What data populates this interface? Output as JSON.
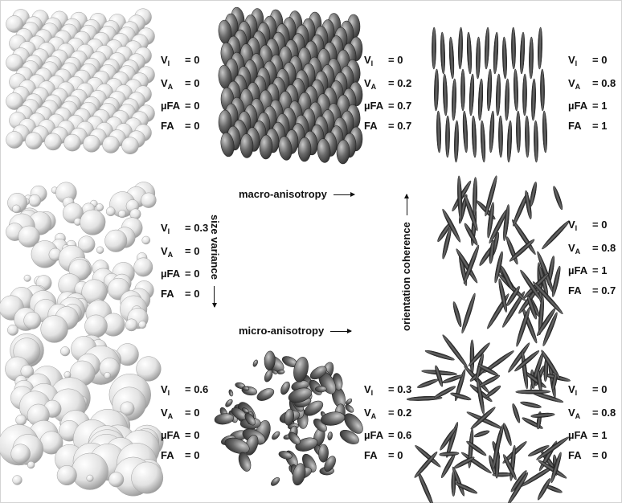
{
  "panels": [
    {
      "id": "r1c1",
      "kind": "sphere",
      "params": [
        {
          "key": "V",
          "sub": "I",
          "value": "= 0"
        },
        {
          "key": "V",
          "sub": "A",
          "value": "= 0"
        },
        {
          "key": "µFA",
          "sub": "",
          "value": "= 0"
        },
        {
          "key": "FA",
          "sub": "",
          "value": "= 0"
        }
      ]
    },
    {
      "id": "r1c2",
      "kind": "prolate",
      "params": [
        {
          "key": "V",
          "sub": "I",
          "value": "= 0"
        },
        {
          "key": "V",
          "sub": "A",
          "value": "= 0.2"
        },
        {
          "key": "µFA",
          "sub": "",
          "value": "= 0.7"
        },
        {
          "key": "FA",
          "sub": "",
          "value": "= 0.7"
        }
      ]
    },
    {
      "id": "r1c3",
      "kind": "stick-aligned",
      "params": [
        {
          "key": "V",
          "sub": "I",
          "value": "= 0"
        },
        {
          "key": "V",
          "sub": "A",
          "value": "= 0.8"
        },
        {
          "key": "µFA",
          "sub": "",
          "value": "= 1"
        },
        {
          "key": "FA",
          "sub": "",
          "value": "= 1"
        }
      ]
    },
    {
      "id": "r2c1",
      "kind": "sphere-varied",
      "params": [
        {
          "key": "V",
          "sub": "I",
          "value": "= 0.3"
        },
        {
          "key": "V",
          "sub": "A",
          "value": "= 0"
        },
        {
          "key": "µFA",
          "sub": "",
          "value": "= 0"
        },
        {
          "key": "FA",
          "sub": "",
          "value": "= 0"
        }
      ]
    },
    {
      "id": "r2c3",
      "kind": "stick-partial",
      "params": [
        {
          "key": "V",
          "sub": "I",
          "value": "= 0"
        },
        {
          "key": "V",
          "sub": "A",
          "value": "= 0.8"
        },
        {
          "key": "µFA",
          "sub": "",
          "value": "= 1"
        },
        {
          "key": "FA",
          "sub": "",
          "value": "= 0.7"
        }
      ]
    },
    {
      "id": "r3c1",
      "kind": "sphere-large",
      "params": [
        {
          "key": "V",
          "sub": "I",
          "value": "= 0.6"
        },
        {
          "key": "V",
          "sub": "A",
          "value": "= 0"
        },
        {
          "key": "µFA",
          "sub": "",
          "value": "= 0"
        },
        {
          "key": "FA",
          "sub": "",
          "value": "= 0"
        }
      ]
    },
    {
      "id": "r3c2",
      "kind": "ellipsoid-random",
      "params": [
        {
          "key": "V",
          "sub": "I",
          "value": "= 0.3"
        },
        {
          "key": "V",
          "sub": "A",
          "value": "= 0.2"
        },
        {
          "key": "µFA",
          "sub": "",
          "value": "= 0.6"
        },
        {
          "key": "FA",
          "sub": "",
          "value": "= 0"
        }
      ]
    },
    {
      "id": "r3c3",
      "kind": "stick-random",
      "params": [
        {
          "key": "V",
          "sub": "I",
          "value": "= 0"
        },
        {
          "key": "V",
          "sub": "A",
          "value": "= 0.8"
        },
        {
          "key": "µFA",
          "sub": "",
          "value": "= 1"
        },
        {
          "key": "FA",
          "sub": "",
          "value": "= 0"
        }
      ]
    }
  ],
  "labels": {
    "macro": "macro-anisotropy",
    "micro": "micro-anisotropy",
    "size": "size variance",
    "orientation": "orientation coherence"
  }
}
